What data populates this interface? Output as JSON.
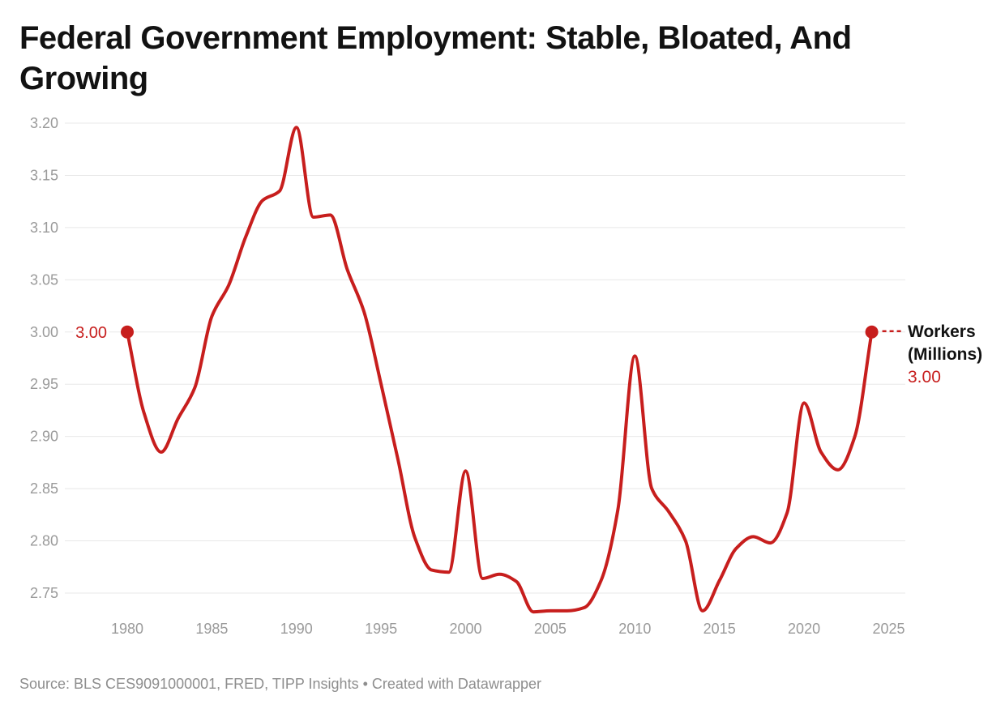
{
  "header": {
    "title": "Federal Government Employment: Stable, Bloated, And\nGrowing"
  },
  "footer": {
    "source": "Source: BLS CES9091000001, FRED, TIPP Insights • Created with Datawrapper"
  },
  "chart_data": {
    "type": "line",
    "title": "Federal Government Employment: Stable, Bloated, And Growing",
    "xlabel": "",
    "ylabel": "Workers (Millions)",
    "ylim": [
      2.75,
      3.2
    ],
    "grid": "horizontal-only",
    "legend_position": "end-of-line-label",
    "line_color": "#c71e1d",
    "grid_color": "#e8e8e8",
    "axis_text_color": "#9a9a9a",
    "x_ticks": [
      "1980",
      "1985",
      "1990",
      "1995",
      "2000",
      "2005",
      "2010",
      "2015",
      "2020",
      "2025"
    ],
    "y_ticks": [
      "2.75",
      "2.80",
      "2.85",
      "2.90",
      "2.95",
      "3.00",
      "3.05",
      "3.10",
      "3.15",
      "3.20"
    ],
    "series": [
      {
        "name": "Workers (Millions)",
        "x": [
          1980,
          1981,
          1982,
          1983,
          1984,
          1985,
          1986,
          1987,
          1988,
          1989,
          1990,
          1991,
          1992,
          1993,
          1994,
          1995,
          1996,
          1997,
          1998,
          1999,
          2000,
          2001,
          2002,
          2003,
          2004,
          2005,
          2006,
          2007,
          2008,
          2009,
          2010,
          2011,
          2012,
          2013,
          2014,
          2015,
          2016,
          2017,
          2018,
          2019,
          2020,
          2021,
          2022,
          2023,
          2024
        ],
        "values": [
          3.0,
          2.922,
          2.885,
          2.917,
          2.947,
          3.015,
          3.045,
          3.091,
          3.126,
          3.135,
          3.196,
          3.11,
          3.112,
          3.06,
          3.019,
          2.95,
          2.878,
          2.803,
          2.772,
          2.77,
          2.867,
          2.764,
          2.768,
          2.761,
          2.732,
          2.733,
          2.733,
          2.736,
          2.762,
          2.83,
          2.977,
          2.85,
          2.828,
          2.8,
          2.733,
          2.762,
          2.793,
          2.804,
          2.798,
          2.827,
          2.932,
          2.885,
          2.868,
          2.9,
          3.0
        ]
      }
    ],
    "annotations": {
      "start": {
        "x": 1980,
        "y": 3.0,
        "label": "3.00"
      },
      "end": {
        "x": 2024,
        "y": 3.0,
        "line1": "Workers",
        "line2": "(Millions)",
        "value_label": "3.00"
      }
    }
  }
}
